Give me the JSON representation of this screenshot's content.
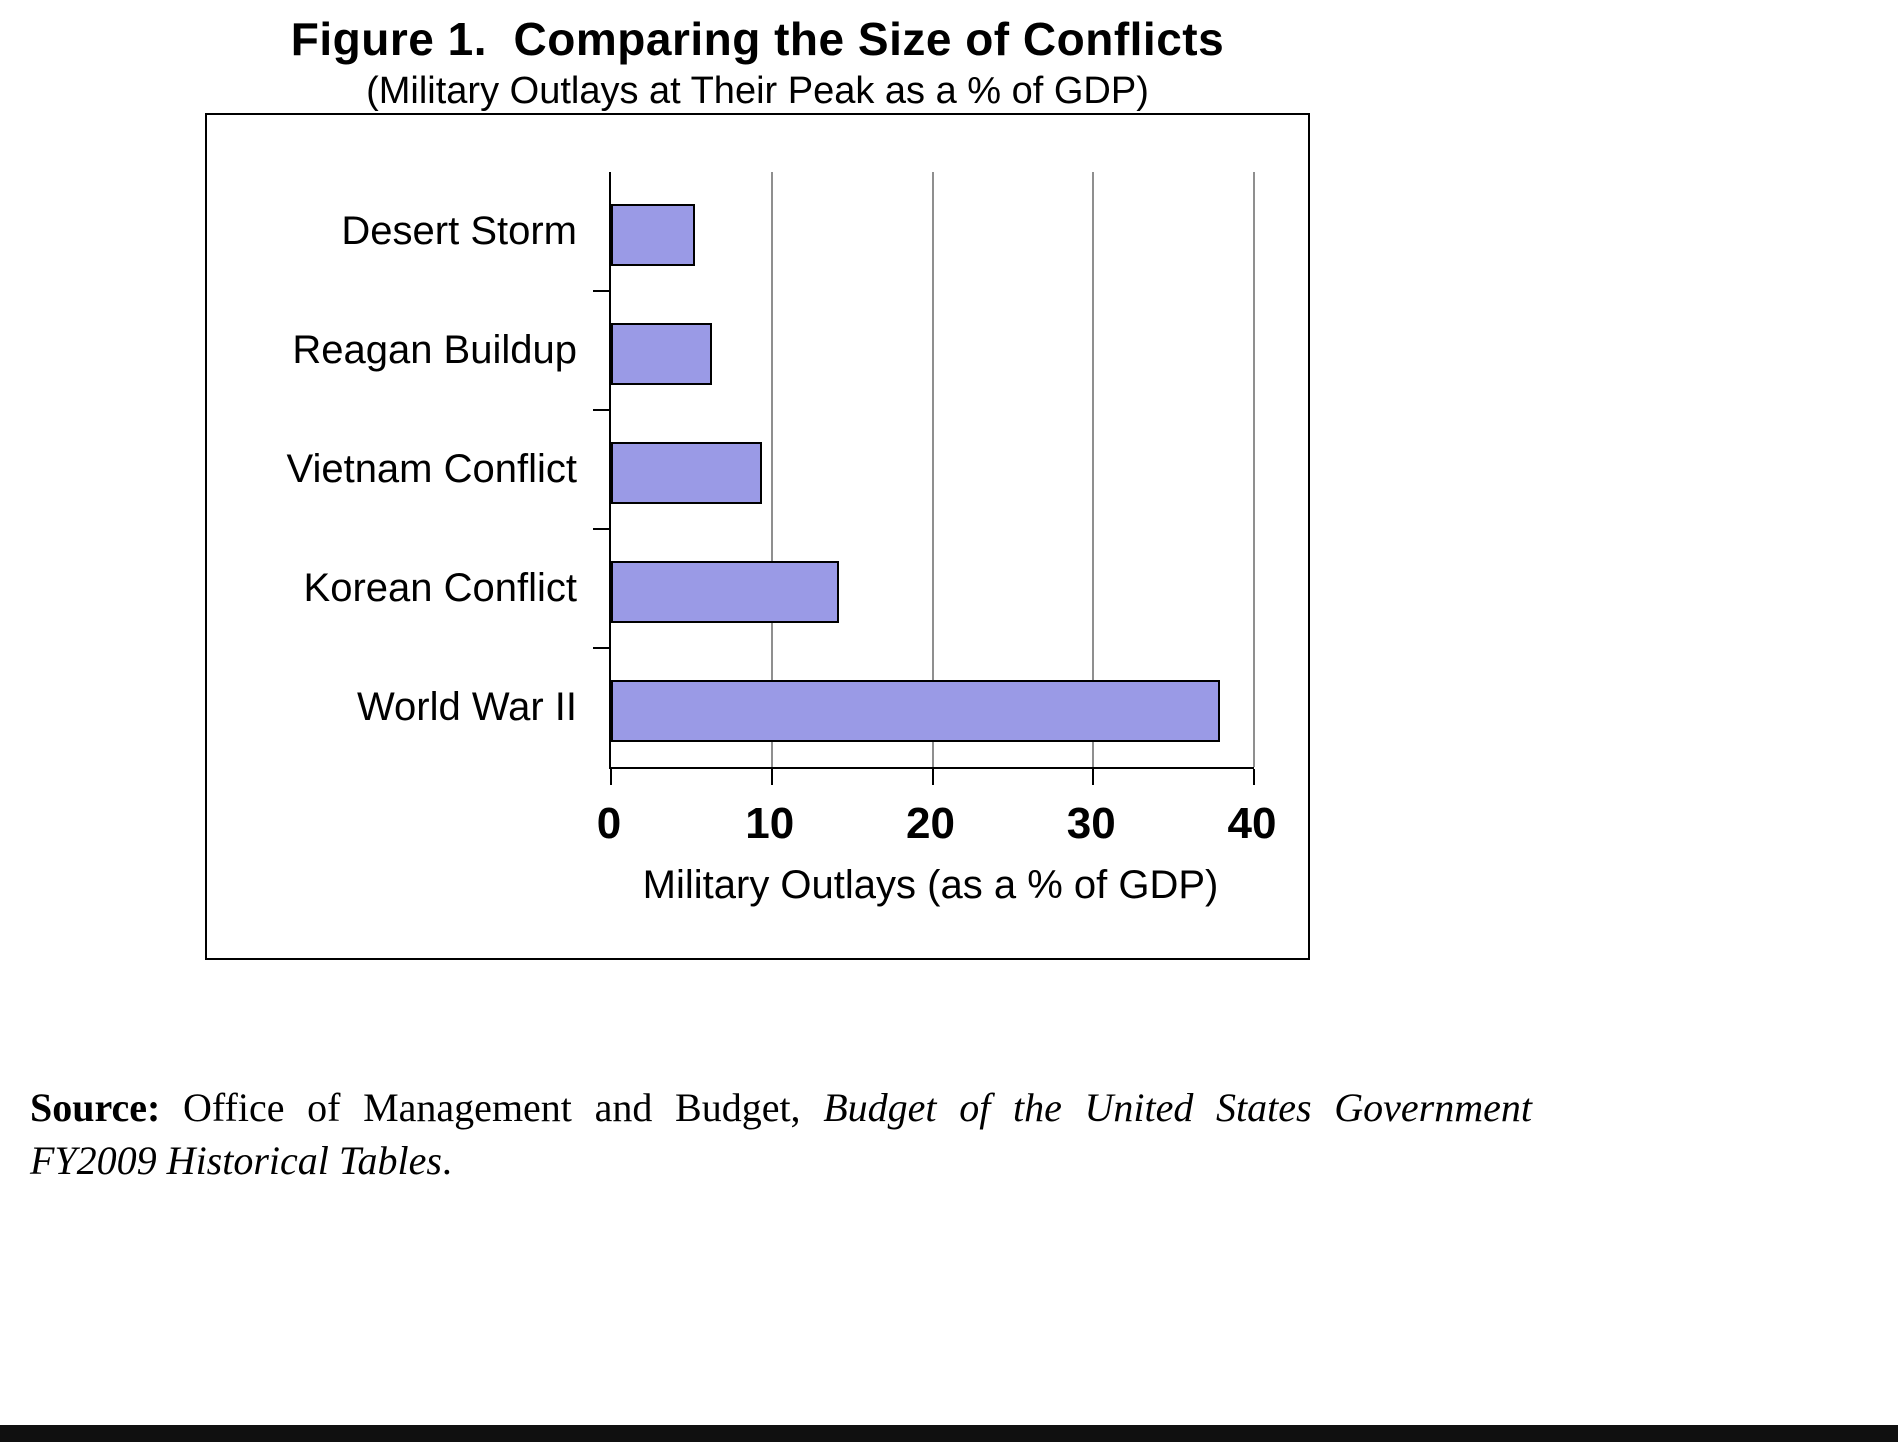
{
  "page": {
    "title": "Figure 1.  Comparing the Size of Conflicts",
    "subtitle": "(Military Outlays at Their Peak as a % of GDP)"
  },
  "chart_data": {
    "type": "bar",
    "orientation": "horizontal",
    "title": "Figure 1.  Comparing the Size of Conflicts",
    "subtitle": "(Military Outlays at Their Peak as a % of GDP)",
    "categories": [
      "Desert Storm",
      "Reagan Buildup",
      "Vietnam Conflict",
      "Korean Conflict",
      "World War II"
    ],
    "values": [
      5.2,
      6.3,
      9.4,
      14.2,
      37.9
    ],
    "xlabel": "Military Outlays (as a % of GDP)",
    "ylabel": "",
    "x_ticks": [
      0,
      10,
      20,
      30,
      40
    ],
    "xlim": [
      0,
      40
    ],
    "grid": true,
    "legend": false,
    "bar_color": "#9a9ae6",
    "bar_border_color": "#000000",
    "gridline_color": "#8f8f8f"
  },
  "source": {
    "line1_bold": "Source:",
    "line1_roman": " Office of Management and Budget, ",
    "line1_italic": "Budget of the United States Government",
    "line2_italic": "FY2009 Historical Tables",
    "line2_end": "."
  }
}
